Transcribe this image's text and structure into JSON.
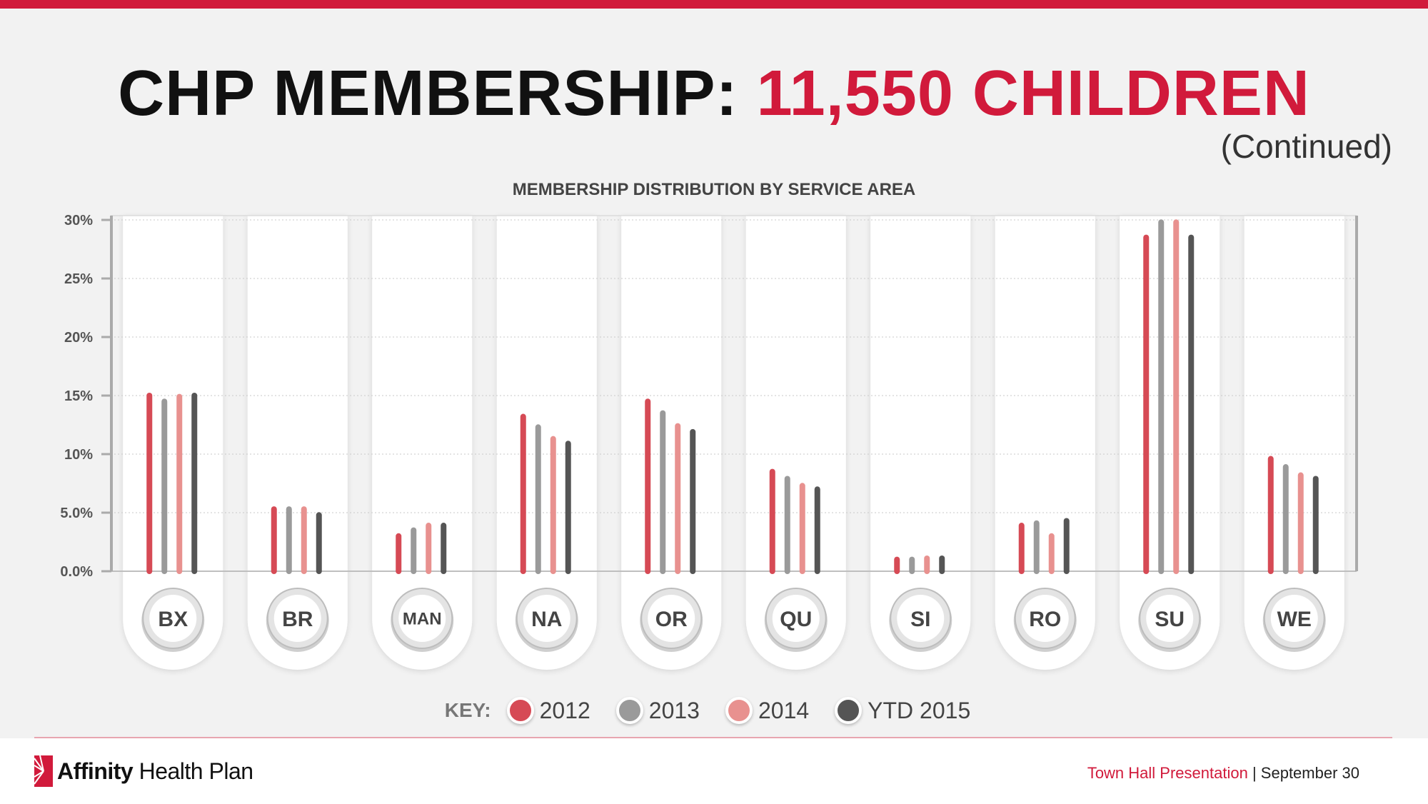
{
  "header": {
    "title_main": "CHP MEMBERSHIP:",
    "title_accent": "11,550 CHILDREN",
    "subtitle": "(Continued)"
  },
  "colors": {
    "accent": "#d11a3b",
    "series_2012": "#d64a55",
    "series_2013": "#9a9a9a",
    "series_2014": "#e8918f",
    "series_2015": "#555555"
  },
  "chart_data": {
    "type": "bar",
    "title": "MEMBERSHIP DISTRIBUTION BY SERVICE AREA",
    "xlabel": "",
    "ylabel": "",
    "ylim": [
      0,
      30
    ],
    "yticks": [
      0,
      5,
      10,
      15,
      20,
      25,
      30
    ],
    "ytick_labels": [
      "0.0%",
      "5.0%",
      "10%",
      "15%",
      "20%",
      "25%",
      "30%"
    ],
    "categories": [
      "BX",
      "BR",
      "MAN",
      "NA",
      "OR",
      "QU",
      "SI",
      "RO",
      "SU",
      "WE"
    ],
    "series": [
      {
        "name": "2012",
        "color": "#d64a55",
        "values": [
          15.0,
          5.3,
          3.0,
          13.2,
          14.5,
          8.5,
          1.0,
          3.9,
          28.5,
          9.6
        ]
      },
      {
        "name": "2013",
        "color": "#9a9a9a",
        "values": [
          14.5,
          5.3,
          3.5,
          12.3,
          13.5,
          7.9,
          1.0,
          4.1,
          29.8,
          8.9
        ]
      },
      {
        "name": "2014",
        "color": "#e8918f",
        "values": [
          14.9,
          5.3,
          3.9,
          11.3,
          12.4,
          7.3,
          1.1,
          3.0,
          29.8,
          8.2
        ]
      },
      {
        "name": "YTD 2015",
        "color": "#555555",
        "values": [
          15.0,
          4.8,
          3.9,
          10.9,
          11.9,
          7.0,
          1.1,
          4.3,
          28.5,
          7.9
        ]
      }
    ],
    "grid": true,
    "legend": "bottom"
  },
  "legend": {
    "key_label": "KEY:"
  },
  "footer": {
    "logo_bold": "Affinity",
    "logo_rest": "Health Plan",
    "presentation": "Town Hall Presentation",
    "separator": "|",
    "date": "September 30"
  }
}
